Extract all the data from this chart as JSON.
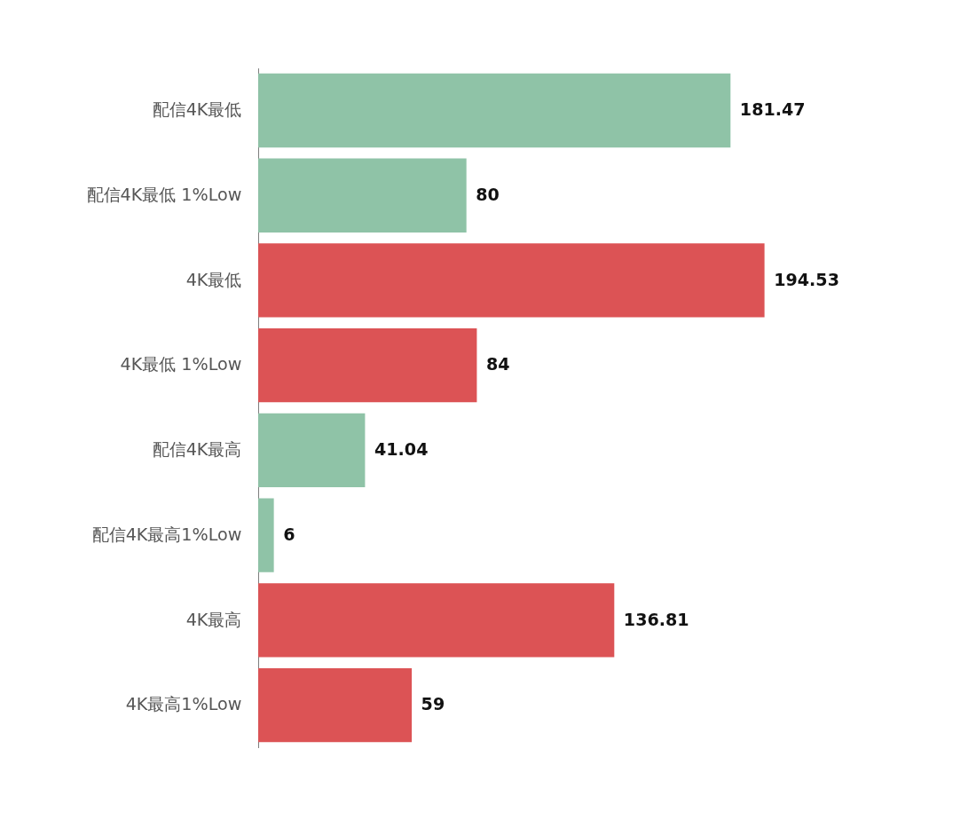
{
  "chart_data": {
    "type": "bar",
    "orientation": "horizontal",
    "data_labels": true,
    "grid": false,
    "categories": [
      "配信4K最低",
      "配信4K最低 1%Low",
      "4K最低",
      "4K最低 1%Low",
      "配信4K最高",
      "配信4K最高1%Low",
      "4K最高",
      "4K最高1%Low"
    ],
    "values": [
      181.47,
      80,
      194.53,
      84,
      41.04,
      6,
      136.81,
      59
    ],
    "colors": [
      "#8fc3a7",
      "#8fc3a7",
      "#dc5355",
      "#dc5355",
      "#8fc3a7",
      "#8fc3a7",
      "#dc5355",
      "#dc5355"
    ]
  }
}
